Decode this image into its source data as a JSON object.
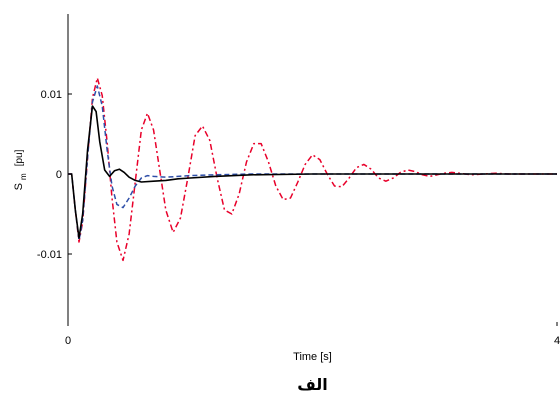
{
  "chart_data": {
    "type": "line",
    "title": "",
    "xlabel": "Time [s]",
    "ylabel_main": "S",
    "ylabel_sub": "m",
    "ylabel_unit": "[pu]",
    "caption": "الف",
    "xlim": [
      0,
      4
    ],
    "ylim": [
      -0.019,
      0.02
    ],
    "xticks": [
      {
        "value": 0,
        "label": "0"
      },
      {
        "value": 4,
        "label": "4"
      }
    ],
    "yticks": [
      {
        "value": 0.01,
        "label": "0.01"
      },
      {
        "value": 0,
        "label": "0"
      },
      {
        "value": -0.01,
        "label": "-0.01"
      }
    ],
    "grid": false,
    "series": [
      {
        "color": "#e8002a",
        "dash": "6,3,2,3",
        "x": [
          0,
          0.03,
          0.06,
          0.09,
          0.12,
          0.16,
          0.2,
          0.24,
          0.28,
          0.32,
          0.36,
          0.4,
          0.45,
          0.5,
          0.55,
          0.6,
          0.65,
          0.7,
          0.75,
          0.8,
          0.86,
          0.92,
          0.98,
          1.04,
          1.1,
          1.16,
          1.22,
          1.28,
          1.34,
          1.4,
          1.46,
          1.52,
          1.58,
          1.64,
          1.7,
          1.76,
          1.82,
          1.88,
          1.94,
          2.0,
          2.06,
          2.12,
          2.18,
          2.24,
          2.3,
          2.36,
          2.42,
          2.48,
          2.54,
          2.6,
          2.66,
          2.72,
          2.78,
          2.84,
          2.9,
          2.96,
          3.02,
          3.08,
          3.14,
          3.2,
          3.3,
          3.4,
          3.5,
          3.6,
          3.7,
          3.8,
          3.9,
          4.0
        ],
        "y": [
          0,
          0,
          -0.0045,
          -0.0085,
          -0.006,
          0.002,
          0.0095,
          0.012,
          0.0098,
          0.004,
          -0.003,
          -0.0085,
          -0.0108,
          -0.0075,
          -0.001,
          0.0055,
          0.0076,
          0.0055,
          0.0005,
          -0.0045,
          -0.0073,
          -0.0055,
          -0.0005,
          0.0048,
          0.006,
          0.0042,
          -0.0005,
          -0.0045,
          -0.005,
          -0.0025,
          0.0015,
          0.0038,
          0.0038,
          0.0015,
          -0.0015,
          -0.0032,
          -0.003,
          -0.001,
          0.0012,
          0.0024,
          0.0018,
          0.0,
          -0.0015,
          -0.0016,
          -0.0005,
          0.0008,
          0.0012,
          0.0006,
          -0.0005,
          -0.0009,
          -0.0005,
          0.0002,
          0.0005,
          0.0003,
          -0.0001,
          -0.0003,
          -0.0001,
          0.0001,
          0.0002,
          0.0001,
          -0.0001,
          0.0,
          0.0001,
          0.0,
          0.0,
          0.0,
          0.0,
          0.0
        ]
      },
      {
        "color": "#2f4fa8",
        "dash": "5,3",
        "x": [
          0,
          0.03,
          0.06,
          0.09,
          0.12,
          0.16,
          0.2,
          0.24,
          0.28,
          0.32,
          0.36,
          0.4,
          0.45,
          0.5,
          0.55,
          0.6,
          0.65,
          0.7,
          0.8,
          0.9,
          1.0,
          1.2,
          1.5,
          2.0,
          2.5,
          3.0,
          3.5,
          4.0
        ],
        "y": [
          0,
          0,
          -0.0045,
          -0.0083,
          -0.0058,
          0.002,
          0.009,
          0.011,
          0.0085,
          0.003,
          -0.0015,
          -0.0038,
          -0.0042,
          -0.003,
          -0.0015,
          -0.0005,
          -0.0002,
          -0.0003,
          -0.0004,
          -0.0003,
          -0.0002,
          -0.0001,
          0.0,
          0.0,
          0.0,
          0.0,
          0.0,
          0.0
        ]
      },
      {
        "color": "#000000",
        "dash": "",
        "x": [
          0,
          0.03,
          0.06,
          0.09,
          0.12,
          0.16,
          0.2,
          0.23,
          0.26,
          0.3,
          0.34,
          0.38,
          0.42,
          0.46,
          0.5,
          0.55,
          0.6,
          0.7,
          0.8,
          0.9,
          1.0,
          1.2,
          1.5,
          2.0,
          2.5,
          3.0,
          3.5,
          4.0
        ],
        "y": [
          0,
          0,
          -0.0045,
          -0.008,
          -0.005,
          0.003,
          0.0085,
          0.0078,
          0.004,
          0.0005,
          -0.0003,
          0.0004,
          0.0006,
          0.0002,
          -0.0004,
          -0.0008,
          -0.001,
          -0.0009,
          -0.0008,
          -0.0006,
          -0.0005,
          -0.0003,
          -0.0001,
          0.0,
          0.0,
          0.0,
          0.0,
          0.0
        ]
      }
    ]
  }
}
